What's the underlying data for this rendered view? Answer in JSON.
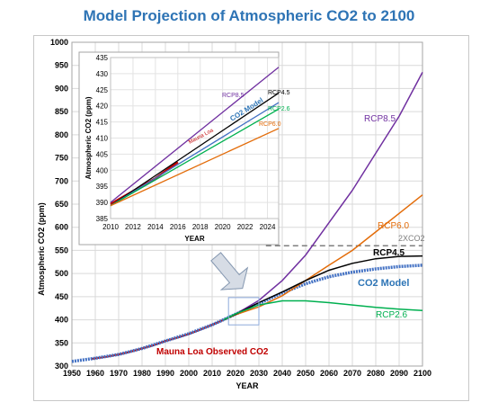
{
  "chart_data": {
    "type": "line",
    "title": "Model Projection of Atmospheric CO2 to 2100",
    "xlabel": "YEAR",
    "ylabel": "Atmospheric CO2 (ppm)",
    "xlim": [
      1950,
      2100
    ],
    "ylim": [
      300,
      1000
    ],
    "xticks": [
      1950,
      1960,
      1970,
      1980,
      1990,
      2000,
      2010,
      2020,
      2030,
      2040,
      2050,
      2060,
      2070,
      2080,
      2090,
      2100
    ],
    "yticks": [
      300,
      350,
      400,
      450,
      500,
      550,
      600,
      650,
      700,
      750,
      800,
      850,
      900,
      950,
      1000
    ],
    "grid": true,
    "series": [
      {
        "name": "Mauna Loa Observed CO2",
        "color": "#c00000",
        "x": [
          1958,
          1965,
          1970,
          1975,
          1980,
          1985,
          1990,
          1995,
          2000,
          2005,
          2010,
          2015
        ],
        "y": [
          315,
          320,
          325,
          331,
          338,
          345,
          354,
          361,
          369,
          379,
          389,
          400
        ]
      },
      {
        "name": "CO2 Model",
        "color": "#4472c4",
        "x": [
          1950,
          1960,
          1970,
          1980,
          1990,
          2000,
          2010,
          2020,
          2030,
          2040,
          2050,
          2060,
          2070,
          2080,
          2090,
          2100
        ],
        "y": [
          310,
          317,
          325,
          338,
          354,
          370,
          389,
          412,
          435,
          458,
          478,
          493,
          503,
          510,
          515,
          518
        ]
      },
      {
        "name": "RCP8.5",
        "color": "#7030a0",
        "x": [
          2015,
          2020,
          2030,
          2040,
          2050,
          2060,
          2070,
          2080,
          2090,
          2100
        ],
        "y": [
          400,
          412,
          442,
          485,
          540,
          610,
          680,
          760,
          840,
          935
        ]
      },
      {
        "name": "RCP6.0",
        "color": "#e36c09",
        "x": [
          2015,
          2020,
          2030,
          2040,
          2050,
          2060,
          2070,
          2080,
          2090,
          2100
        ],
        "y": [
          400,
          411,
          428,
          452,
          485,
          518,
          550,
          590,
          630,
          670
        ]
      },
      {
        "name": "RCP4.5",
        "color": "#000000",
        "x": [
          2015,
          2020,
          2030,
          2040,
          2050,
          2060,
          2070,
          2080,
          2090,
          2100
        ],
        "y": [
          400,
          412,
          437,
          460,
          485,
          507,
          522,
          532,
          537,
          538
        ]
      },
      {
        "name": "RCP2.6",
        "color": "#00b050",
        "x": [
          2015,
          2020,
          2030,
          2040,
          2050,
          2060,
          2070,
          2080,
          2090,
          2100
        ],
        "y": [
          400,
          413,
          432,
          441,
          441,
          437,
          432,
          427,
          423,
          420
        ]
      }
    ],
    "reference_line": {
      "label": "2XCO2",
      "y": 560,
      "color": "#7f7f7f"
    },
    "labels": {
      "rcp85": "RCP8.5",
      "rcp60": "RCP6.0",
      "rcp45": "RCP4.5",
      "rcp26": "RCP2.6",
      "model": "CO2 Model",
      "observed": "Mauna Loa Observed CO2",
      "twox": "2XCO2"
    },
    "inset": {
      "xlabel": "YEAR",
      "ylabel": "Atmospheric CO2 (ppm)",
      "xlim": [
        2010,
        2025
      ],
      "ylim": [
        385,
        435
      ],
      "xticks": [
        2010,
        2012,
        2014,
        2016,
        2018,
        2020,
        2022,
        2024
      ],
      "yticks": [
        385,
        390,
        395,
        400,
        405,
        410,
        415,
        420,
        425,
        430,
        435
      ],
      "series": [
        {
          "name": "Mauna Loa Observed CO2",
          "color": "#c00000",
          "x": [
            2010,
            2012,
            2014,
            2016
          ],
          "y": [
            389.5,
            393.5,
            397.5,
            402.5
          ]
        },
        {
          "name": "RCP8.5",
          "color": "#7030a0",
          "x": [
            2010,
            2025
          ],
          "y": [
            390,
            432
          ]
        },
        {
          "name": "RCP4.5",
          "color": "#000000",
          "x": [
            2010,
            2025
          ],
          "y": [
            389,
            424
          ]
        },
        {
          "name": "CO2 Model",
          "color": "#4472c4",
          "x": [
            2010,
            2025
          ],
          "y": [
            389,
            421
          ]
        },
        {
          "name": "RCP2.6",
          "color": "#00b050",
          "x": [
            2010,
            2025
          ],
          "y": [
            389,
            419
          ]
        },
        {
          "name": "RCP6.0",
          "color": "#e36c09",
          "x": [
            2010,
            2025
          ],
          "y": [
            389,
            413
          ]
        }
      ],
      "labels": {
        "rcp85": "RCP8.5",
        "rcp45": "RCP4.5",
        "rcp26": "RCP2.6",
        "rcp60": "RCP6.0",
        "model": "CO2 Model",
        "observed": "Mauna Loa"
      }
    }
  }
}
